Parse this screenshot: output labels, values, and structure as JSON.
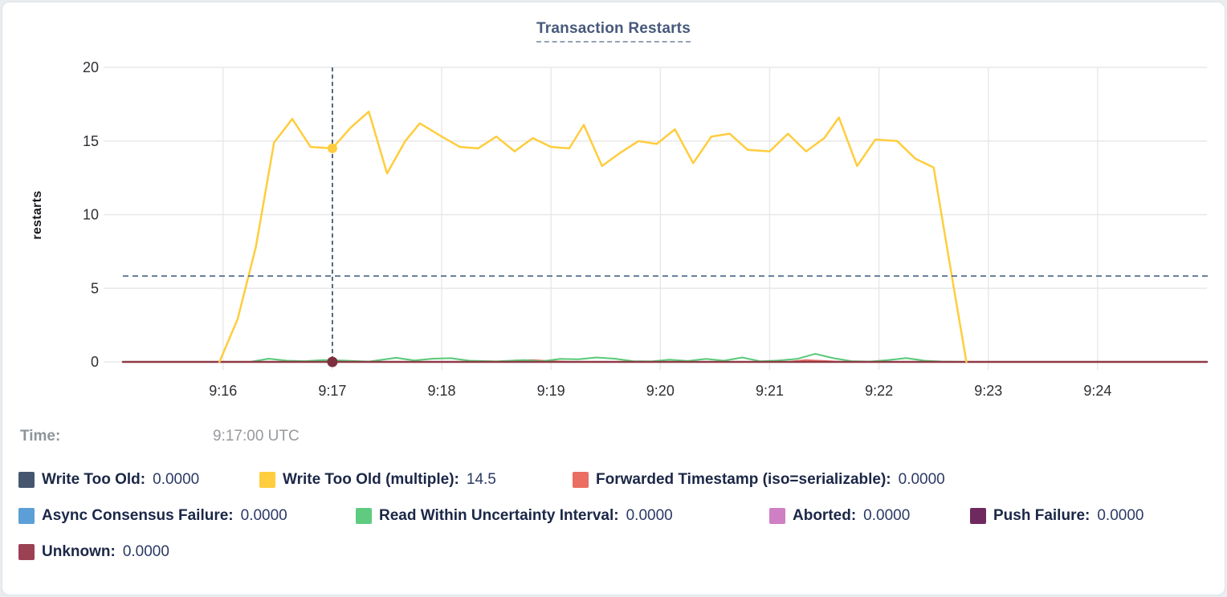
{
  "title": {
    "text": "Transaction Restarts"
  },
  "tooltip": {
    "time_label": "Time:",
    "time_value": "9:17:00 UTC"
  },
  "legend": {
    "rows": [
      [
        {
          "label": "Write Too Old:",
          "value": "0.0000",
          "color": "#46566e"
        },
        {
          "label": "Write Too Old (multiple):",
          "value": "14.5",
          "color": "#ffcd3d"
        },
        {
          "label": "Forwarded Timestamp (iso=serializable):",
          "value": "0.0000",
          "color": "#ea6e62"
        }
      ],
      [
        {
          "label": "Async Consensus Failure:",
          "value": "0.0000",
          "color": "#5b9fd6"
        },
        {
          "label": "Read Within Uncertainty Interval:",
          "value": "0.0000",
          "color": "#5ecb81"
        },
        {
          "label": "Aborted:",
          "value": "0.0000",
          "color": "#cf7fc4"
        },
        {
          "label": "Push Failure:",
          "value": "0.0000",
          "color": "#6e2a5e"
        }
      ],
      [
        {
          "label": "Unknown:",
          "value": "0.0000",
          "color": "#9c4154"
        }
      ]
    ]
  },
  "chart_data": {
    "type": "line",
    "title": "Transaction Restarts",
    "xlabel": "",
    "ylabel": "restarts",
    "ylim": [
      0,
      20
    ],
    "y_ticks": [
      0,
      5,
      10,
      15,
      20
    ],
    "x_ticks": [
      "9:16",
      "9:17",
      "9:18",
      "9:19",
      "9:20",
      "9:21",
      "9:22",
      "9:23",
      "9:24"
    ],
    "x_domain": [
      "9:15:05",
      "9:25:00"
    ],
    "grid": true,
    "legend_position": "bottom",
    "crosshair": {
      "x": "9:17:00",
      "guide_y": 5.83,
      "dots": [
        {
          "series": "Write Too Old (multiple)",
          "x": "9:17:00",
          "y": 14.5,
          "color": "#ffcd3d",
          "r": 6
        },
        {
          "series": "Unknown",
          "x": "9:17:00",
          "y": 0,
          "color": "#7e2f3e",
          "r": 6.5
        }
      ]
    },
    "series": [
      {
        "name": "Write Too Old",
        "color": "#46566e",
        "width": 2,
        "points": [
          [
            "9:15:05",
            0
          ],
          [
            "9:25:00",
            0
          ]
        ]
      },
      {
        "name": "Forwarded Timestamp (iso=serializable)",
        "color": "#ea6e62",
        "width": 2,
        "points": [
          [
            "9:15:05",
            0
          ],
          [
            "9:18:30",
            0
          ],
          [
            "9:18:40",
            0.1
          ],
          [
            "9:18:50",
            0.12
          ],
          [
            "9:19:00",
            0.05
          ],
          [
            "9:19:10",
            0
          ],
          [
            "9:21:10",
            0
          ],
          [
            "9:21:20",
            0.12
          ],
          [
            "9:21:30",
            0.06
          ],
          [
            "9:21:40",
            0
          ],
          [
            "9:25:00",
            0
          ]
        ]
      },
      {
        "name": "Async Consensus Failure",
        "color": "#5b9fd6",
        "width": 2,
        "points": [
          [
            "9:15:05",
            0
          ],
          [
            "9:25:00",
            0
          ]
        ]
      },
      {
        "name": "Aborted",
        "color": "#cf7fc4",
        "width": 2,
        "points": [
          [
            "9:15:05",
            0
          ],
          [
            "9:25:00",
            0
          ]
        ]
      },
      {
        "name": "Push Failure",
        "color": "#6e2a5e",
        "width": 2,
        "points": [
          [
            "9:15:05",
            0
          ],
          [
            "9:25:00",
            0
          ]
        ]
      },
      {
        "name": "Read Within Uncertainty Interval",
        "color": "#57c878",
        "width": 2,
        "points": [
          [
            "9:16:15",
            0
          ],
          [
            "9:16:25",
            0.22
          ],
          [
            "9:16:35",
            0.08
          ],
          [
            "9:16:45",
            0.05
          ],
          [
            "9:16:55",
            0.12
          ],
          [
            "9:17:05",
            0.1
          ],
          [
            "9:17:20",
            0.02
          ],
          [
            "9:17:35",
            0.28
          ],
          [
            "9:17:45",
            0.1
          ],
          [
            "9:17:55",
            0.22
          ],
          [
            "9:18:05",
            0.25
          ],
          [
            "9:18:15",
            0.08
          ],
          [
            "9:18:30",
            0.03
          ],
          [
            "9:18:45",
            0.12
          ],
          [
            "9:18:55",
            0.04
          ],
          [
            "9:19:05",
            0.2
          ],
          [
            "9:19:15",
            0.18
          ],
          [
            "9:19:25",
            0.3
          ],
          [
            "9:19:35",
            0.22
          ],
          [
            "9:19:45",
            0.05
          ],
          [
            "9:19:55",
            0.03
          ],
          [
            "9:20:05",
            0.15
          ],
          [
            "9:20:15",
            0.06
          ],
          [
            "9:20:25",
            0.2
          ],
          [
            "9:20:35",
            0.08
          ],
          [
            "9:20:45",
            0.3
          ],
          [
            "9:20:55",
            0.04
          ],
          [
            "9:21:05",
            0.1
          ],
          [
            "9:21:15",
            0.2
          ],
          [
            "9:21:25",
            0.55
          ],
          [
            "9:21:35",
            0.25
          ],
          [
            "9:21:45",
            0.05
          ],
          [
            "9:21:55",
            0.02
          ],
          [
            "9:22:05",
            0.12
          ],
          [
            "9:22:15",
            0.26
          ],
          [
            "9:22:25",
            0.08
          ],
          [
            "9:22:35",
            0.02
          ],
          [
            "9:22:45",
            0
          ],
          [
            "9:25:00",
            0
          ]
        ]
      },
      {
        "name": "Unknown",
        "color": "#8e3a46",
        "width": 2.5,
        "points": [
          [
            "9:15:05",
            0
          ],
          [
            "9:25:00",
            0
          ]
        ]
      },
      {
        "name": "Write Too Old (multiple)",
        "color": "#ffcd3d",
        "width": 2.5,
        "points": [
          [
            "9:15:58",
            0
          ],
          [
            "9:16:08",
            2.9
          ],
          [
            "9:16:18",
            7.8
          ],
          [
            "9:16:28",
            14.9
          ],
          [
            "9:16:38",
            16.5
          ],
          [
            "9:16:48",
            14.6
          ],
          [
            "9:17:00",
            14.5
          ],
          [
            "9:17:10",
            15.9
          ],
          [
            "9:17:20",
            17.0
          ],
          [
            "9:17:30",
            12.8
          ],
          [
            "9:17:40",
            15.0
          ],
          [
            "9:17:48",
            16.2
          ],
          [
            "9:18:00",
            15.3
          ],
          [
            "9:18:10",
            14.6
          ],
          [
            "9:18:20",
            14.5
          ],
          [
            "9:18:30",
            15.3
          ],
          [
            "9:18:40",
            14.3
          ],
          [
            "9:18:50",
            15.2
          ],
          [
            "9:19:00",
            14.6
          ],
          [
            "9:19:10",
            14.5
          ],
          [
            "9:19:18",
            16.1
          ],
          [
            "9:19:28",
            13.3
          ],
          [
            "9:19:38",
            14.2
          ],
          [
            "9:19:48",
            15.0
          ],
          [
            "9:19:58",
            14.8
          ],
          [
            "9:20:08",
            15.8
          ],
          [
            "9:20:18",
            13.5
          ],
          [
            "9:20:28",
            15.3
          ],
          [
            "9:20:38",
            15.5
          ],
          [
            "9:20:48",
            14.4
          ],
          [
            "9:21:00",
            14.3
          ],
          [
            "9:21:10",
            15.5
          ],
          [
            "9:21:20",
            14.3
          ],
          [
            "9:21:30",
            15.2
          ],
          [
            "9:21:38",
            16.6
          ],
          [
            "9:21:48",
            13.3
          ],
          [
            "9:21:58",
            15.1
          ],
          [
            "9:22:10",
            15.0
          ],
          [
            "9:22:20",
            13.8
          ],
          [
            "9:22:30",
            13.2
          ],
          [
            "9:22:40",
            5.8
          ],
          [
            "9:22:48",
            0
          ]
        ]
      }
    ]
  }
}
